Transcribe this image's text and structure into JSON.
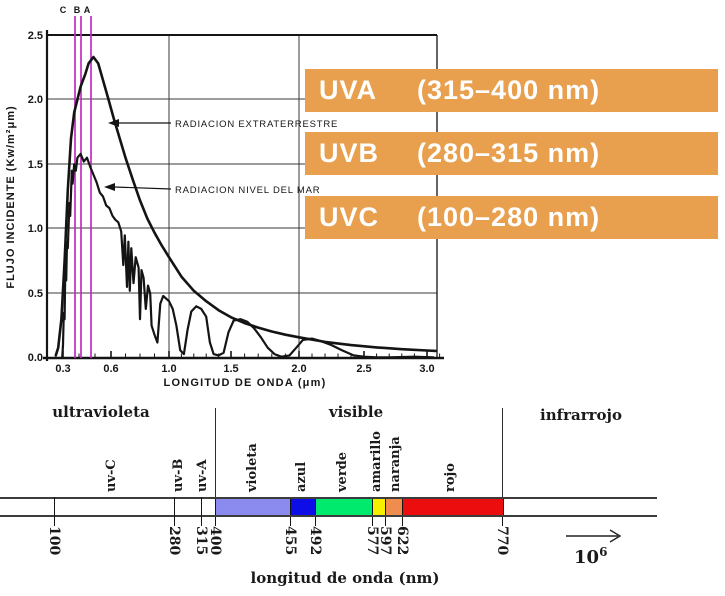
{
  "colors": {
    "legend_box_orange": "#e8a04e",
    "uv_marker_magenta": "#c42ac4",
    "curve_black": "#141414",
    "violeta": "#8a8aef",
    "azul": "#0d0de8",
    "verde": "#00eb6e",
    "amarillo": "#f6f000",
    "naranja": "#f08c4e",
    "rojo": "#ec0e0e"
  },
  "legend": {
    "items": [
      {
        "label": "UVA",
        "range": "(315–400 nm)"
      },
      {
        "label": "UVB",
        "range": "(280–315 nm)"
      },
      {
        "label": "UVC",
        "range": "(100–280 nm)"
      }
    ]
  },
  "chart": {
    "y_axis_label": "FLUJO INCIDENTE (Kw/m²μm)",
    "x_axis_label": "LONGITUD DE ONDA (μm)",
    "y_ticks": [
      "2.5",
      "2.0",
      "1.5",
      "1.0",
      "0.5",
      "0.0"
    ],
    "x_ticks": [
      "0.3",
      "0.6",
      "1.0",
      "1.5",
      "2.0",
      "2.5",
      "3.0"
    ],
    "uv_band_markers": [
      "C",
      "B",
      "A"
    ],
    "annotations": {
      "extraterrestrial": "RADIACION EXTRATERRESTRE",
      "sea_level": "RADIACION NIVEL DEL MAR"
    }
  },
  "chart_data": {
    "type": "line",
    "title": "",
    "xlabel": "LONGITUD DE ONDA (μm)",
    "ylabel": "FLUJO INCIDENTE (Kw/m²μm)",
    "xlim": [
      0.2,
      3.1
    ],
    "ylim": [
      0,
      2.5
    ],
    "grid": true,
    "legend_position": "inline-arrows",
    "series": [
      {
        "name": "RADIACION EXTRATERRESTRE",
        "points": [
          [
            0.255,
            0.02
          ],
          [
            0.27,
            0.08
          ],
          [
            0.29,
            0.3
          ],
          [
            0.31,
            0.75
          ],
          [
            0.33,
            1.3
          ],
          [
            0.35,
            1.7
          ],
          [
            0.37,
            1.9
          ],
          [
            0.39,
            2.0
          ],
          [
            0.41,
            2.1
          ],
          [
            0.44,
            2.2
          ],
          [
            0.46,
            2.28
          ],
          [
            0.49,
            2.33
          ],
          [
            0.52,
            2.28
          ],
          [
            0.55,
            2.15
          ],
          [
            0.58,
            2.02
          ],
          [
            0.62,
            1.85
          ],
          [
            0.66,
            1.7
          ],
          [
            0.7,
            1.55
          ],
          [
            0.75,
            1.38
          ],
          [
            0.8,
            1.22
          ],
          [
            0.85,
            1.08
          ],
          [
            0.9,
            0.97
          ],
          [
            0.95,
            0.87
          ],
          [
            1.0,
            0.78
          ],
          [
            1.1,
            0.63
          ],
          [
            1.2,
            0.52
          ],
          [
            1.3,
            0.44
          ],
          [
            1.4,
            0.37
          ],
          [
            1.5,
            0.315
          ],
          [
            1.6,
            0.27
          ],
          [
            1.7,
            0.235
          ],
          [
            1.8,
            0.205
          ],
          [
            1.9,
            0.18
          ],
          [
            2.0,
            0.16
          ],
          [
            2.2,
            0.125
          ],
          [
            2.4,
            0.1
          ],
          [
            2.6,
            0.082
          ],
          [
            2.8,
            0.068
          ],
          [
            3.0,
            0.058
          ],
          [
            3.07,
            0.055
          ]
        ]
      },
      {
        "name": "RADIACION NIVEL DEL MAR",
        "points": [
          [
            0.295,
            0.0
          ],
          [
            0.3,
            0.1
          ],
          [
            0.305,
            0.35
          ],
          [
            0.31,
            0.3
          ],
          [
            0.315,
            0.75
          ],
          [
            0.32,
            0.6
          ],
          [
            0.325,
            0.9
          ],
          [
            0.33,
            0.85
          ],
          [
            0.34,
            1.2
          ],
          [
            0.345,
            1.1
          ],
          [
            0.355,
            1.45
          ],
          [
            0.36,
            1.35
          ],
          [
            0.37,
            1.5
          ],
          [
            0.38,
            1.45
          ],
          [
            0.39,
            1.55
          ],
          [
            0.41,
            1.58
          ],
          [
            0.43,
            1.52
          ],
          [
            0.45,
            1.55
          ],
          [
            0.47,
            1.48
          ],
          [
            0.49,
            1.42
          ],
          [
            0.51,
            1.36
          ],
          [
            0.53,
            1.28
          ],
          [
            0.55,
            1.25
          ],
          [
            0.57,
            1.18
          ],
          [
            0.59,
            1.16
          ],
          [
            0.61,
            1.1
          ],
          [
            0.63,
            1.07
          ],
          [
            0.65,
            1.05
          ],
          [
            0.67,
            0.98
          ],
          [
            0.685,
            0.72
          ],
          [
            0.695,
            0.95
          ],
          [
            0.71,
            0.55
          ],
          [
            0.72,
            0.9
          ],
          [
            0.73,
            0.52
          ],
          [
            0.74,
            0.85
          ],
          [
            0.755,
            0.58
          ],
          [
            0.77,
            0.78
          ],
          [
            0.79,
            0.7
          ],
          [
            0.8,
            0.3
          ],
          [
            0.81,
            0.68
          ],
          [
            0.825,
            0.62
          ],
          [
            0.84,
            0.38
          ],
          [
            0.855,
            0.56
          ],
          [
            0.87,
            0.5
          ],
          [
            0.88,
            0.25
          ],
          [
            0.9,
            0.18
          ],
          [
            0.92,
            0.12
          ],
          [
            0.94,
            0.42
          ],
          [
            0.96,
            0.48
          ],
          [
            0.98,
            0.46
          ],
          [
            1.0,
            0.44
          ],
          [
            1.03,
            0.38
          ],
          [
            1.06,
            0.25
          ],
          [
            1.09,
            0.06
          ],
          [
            1.12,
            0.03
          ],
          [
            1.15,
            0.22
          ],
          [
            1.18,
            0.36
          ],
          [
            1.22,
            0.4
          ],
          [
            1.26,
            0.38
          ],
          [
            1.3,
            0.32
          ],
          [
            1.33,
            0.12
          ],
          [
            1.36,
            0.03
          ],
          [
            1.4,
            0.02
          ],
          [
            1.44,
            0.04
          ],
          [
            1.48,
            0.2
          ],
          [
            1.52,
            0.29
          ],
          [
            1.57,
            0.3
          ],
          [
            1.62,
            0.28
          ],
          [
            1.67,
            0.23
          ],
          [
            1.72,
            0.16
          ],
          [
            1.77,
            0.08
          ],
          [
            1.82,
            0.03
          ],
          [
            1.87,
            0.01
          ],
          [
            1.93,
            0.02
          ],
          [
            1.98,
            0.08
          ],
          [
            2.03,
            0.14
          ],
          [
            2.1,
            0.15
          ],
          [
            2.17,
            0.13
          ],
          [
            2.25,
            0.1
          ],
          [
            2.33,
            0.06
          ],
          [
            2.42,
            0.02
          ],
          [
            2.5,
            0.01
          ],
          [
            2.6,
            0.005
          ],
          [
            2.7,
            0.005
          ],
          [
            2.9,
            0.01
          ],
          [
            3.05,
            0.005
          ]
        ]
      }
    ]
  },
  "spectrum": {
    "regions": [
      {
        "label": "ultravioleta"
      },
      {
        "label": "visible"
      },
      {
        "label": "infrarrojo"
      }
    ],
    "bands": [
      {
        "label": "uv-C",
        "from": 100,
        "to": 280
      },
      {
        "label": "uv-B",
        "from": 280,
        "to": 315
      },
      {
        "label": "uv-A",
        "from": 315,
        "to": 400
      },
      {
        "label": "violeta",
        "from": 400,
        "to": 455
      },
      {
        "label": "azul",
        "from": 455,
        "to": 492
      },
      {
        "label": "verde",
        "from": 492,
        "to": 577
      },
      {
        "label": "amarillo",
        "from": 577,
        "to": 597
      },
      {
        "label": "naranja",
        "from": 597,
        "to": 622
      },
      {
        "label": "rojo",
        "from": 622,
        "to": 770
      }
    ],
    "ticks": [
      "100",
      "280",
      "315",
      "400",
      "455",
      "492",
      "577",
      "597",
      "622",
      "770"
    ],
    "scale_base": "10",
    "scale_exponent": "6",
    "axis_label": "longitud de onda  (nm)"
  }
}
